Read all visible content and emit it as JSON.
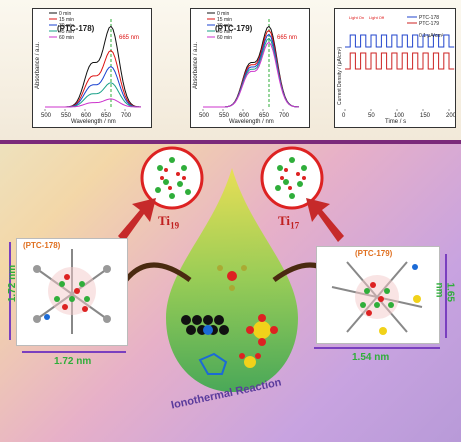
{
  "chart_data": [
    {
      "type": "line",
      "title": "(PTC-178)",
      "peak_label": "665 nm",
      "xlabel": "Wavelength / nm",
      "ylabel": "Absorbance / a.u.",
      "xlim": [
        500,
        750
      ],
      "xticks": [
        "500",
        "550",
        "600",
        "650",
        "700"
      ],
      "legend": [
        "0 min",
        "15 min",
        "30 min",
        "45 min",
        "60 min"
      ],
      "colors": [
        "#111111",
        "#d11",
        "#1840d0",
        "#18a088",
        "#cc33cc"
      ]
    },
    {
      "type": "line",
      "title": "(PTC-179)",
      "peak_label": "665 nm",
      "xlabel": "Wavelength / nm",
      "ylabel": "Absorbance / a.u.",
      "xlim": [
        500,
        750
      ],
      "xticks": [
        "500",
        "550",
        "600",
        "650",
        "700"
      ],
      "legend": [
        "0 min",
        "15 min",
        "30 min",
        "45 min",
        "60 min"
      ],
      "colors": [
        "#111111",
        "#d11",
        "#1840d0",
        "#18a088",
        "#cc33cc"
      ]
    },
    {
      "type": "line",
      "xlabel": "Time / s",
      "ylabel": "Current Density / (μA/cm²)",
      "xlim": [
        0,
        200
      ],
      "xticks": [
        "0",
        "50",
        "100",
        "150",
        "200"
      ],
      "legend": [
        "PTC-178",
        "PTC-179"
      ],
      "colors": [
        "#2244cc",
        "#cc2222"
      ],
      "annotations": [
        "Light On",
        "Light Off",
        "0.1 μA/cm²"
      ]
    }
  ],
  "labels": {
    "ti19": "Ti",
    "ti19_sub": "19",
    "ti17": "Ti",
    "ti17_sub": "17",
    "ptc178": "(PTC-178)",
    "ptc179": "(PTC-179)",
    "left_v": "1.72 nm",
    "left_h": "1.72 nm",
    "right_v": "1.65 nm",
    "right_h": "1.54 nm",
    "reaction": "Ionothermal Reaction"
  }
}
